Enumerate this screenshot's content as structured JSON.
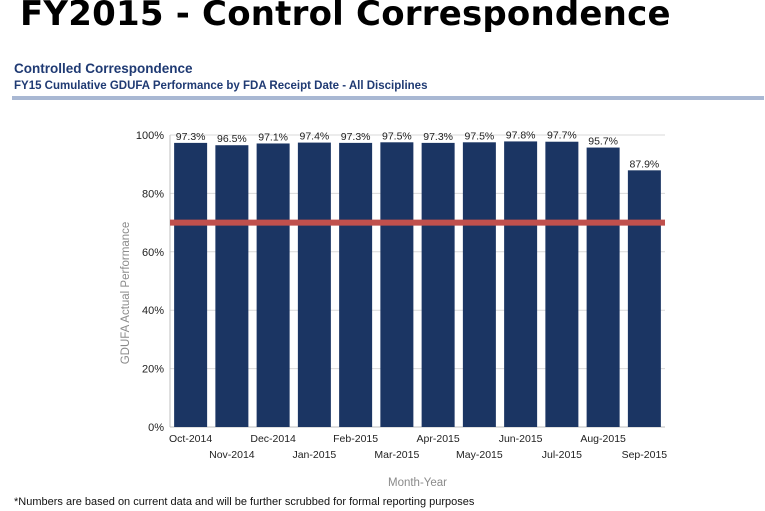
{
  "slide": {
    "title": "FY2015 - Control Correspondence",
    "chart_heading": "Controlled Correspondence",
    "chart_subheading": "FY15 Cumulative GDUFA Performance by FDA Receipt Date - All Disciplines",
    "footnote": "*Numbers are based on current data and will be further scrubbed for formal reporting purposes"
  },
  "chart_data": {
    "type": "bar",
    "xlabel": "Month-Year",
    "ylabel": "GDUFA Actual Performance",
    "categories": [
      "Oct-2014",
      "Nov-2014",
      "Dec-2014",
      "Jan-2015",
      "Feb-2015",
      "Mar-2015",
      "Apr-2015",
      "May-2015",
      "Jun-2015",
      "Jul-2015",
      "Aug-2015",
      "Sep-2015"
    ],
    "values": [
      97.3,
      96.5,
      97.1,
      97.4,
      97.3,
      97.5,
      97.3,
      97.5,
      97.8,
      97.7,
      95.7,
      87.9
    ],
    "data_labels": [
      "97.3%",
      "96.5%",
      "97.1%",
      "97.4%",
      "97.3%",
      "97.5%",
      "97.3%",
      "97.5%",
      "97.8%",
      "97.7%",
      "95.7%",
      "87.9%"
    ],
    "yticks": [
      "0%",
      "20%",
      "40%",
      "60%",
      "80%",
      "100%"
    ],
    "ylim": [
      0,
      100
    ],
    "target_line": 70,
    "grid": true,
    "colors": {
      "bar": "#1b3563",
      "target": "#c0504d",
      "grid": "#d9d9d9"
    }
  }
}
